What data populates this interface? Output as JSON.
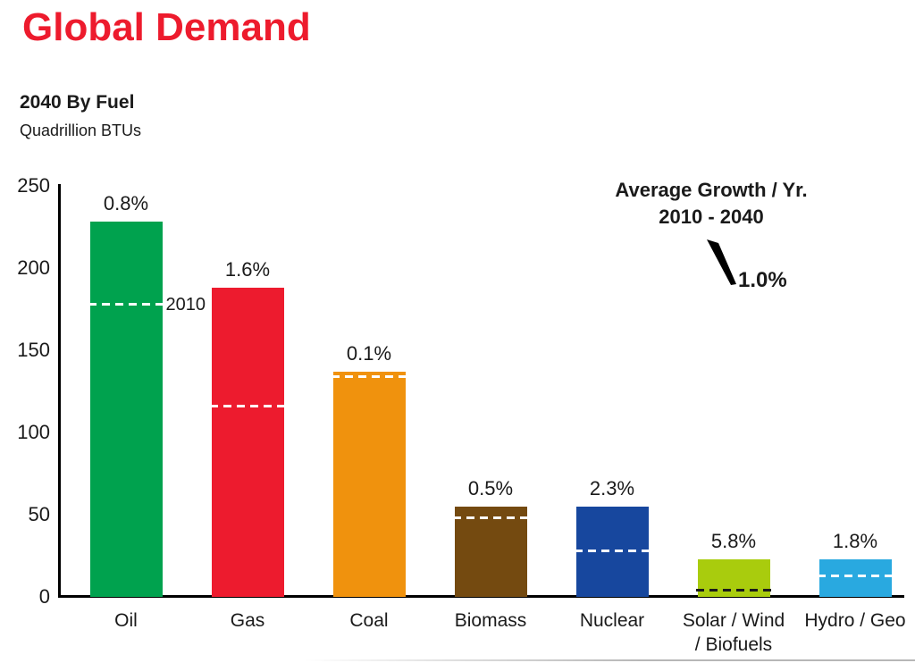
{
  "header": {
    "title": "Global Demand",
    "title_color": "#ED1B2D",
    "subtitle": "2040 By Fuel",
    "units": "Quadrillion BTUs"
  },
  "annotation": {
    "line1": "Average Growth / Yr.",
    "line2": "2010 - 2040",
    "value": "1.0%"
  },
  "chart_data": {
    "type": "bar",
    "title": "2040 By Fuel",
    "ylabel": "Quadrillion BTUs",
    "ylim": [
      0,
      250
    ],
    "yticks": [
      0,
      50,
      100,
      150,
      200,
      250
    ],
    "grid": false,
    "legend_position": "none",
    "categories": [
      "Oil",
      "Gas",
      "Coal",
      "Biomass",
      "Nuclear",
      "Solar / Wind / Biofuels",
      "Hydro / Geo"
    ],
    "category_display_lines": [
      [
        "Oil"
      ],
      [
        "Gas"
      ],
      [
        "Coal"
      ],
      [
        "Biomass"
      ],
      [
        "Nuclear"
      ],
      [
        "Solar / Wind",
        "/ Biofuels"
      ],
      [
        "Hydro / Geo"
      ]
    ],
    "series": [
      {
        "name": "2040 demand",
        "values": [
          228,
          188,
          137,
          55,
          55,
          23,
          23
        ]
      },
      {
        "name": "2010 demand (dashed reference line)",
        "values": [
          178,
          116,
          134,
          48,
          28,
          4,
          13
        ]
      }
    ],
    "growth_labels": [
      "0.8%",
      "1.6%",
      "0.1%",
      "0.5%",
      "2.3%",
      "5.8%",
      "1.8%"
    ],
    "bar_colors": [
      "#00A24E",
      "#ED1B2E",
      "#F0920D",
      "#744A10",
      "#17479E",
      "#A9CC0D",
      "#29A9E0"
    ],
    "dash_colors": [
      "#FFFFFF",
      "#FFFFFF",
      "#FFFFFF",
      "#FFFFFF",
      "#FFFFFF",
      "#1A1A1A",
      "#FFFFFF"
    ],
    "reference_line_label": "2010",
    "reference_label_bar_index": 0,
    "annotation": {
      "title": "Average Growth / Yr.",
      "period": "2010 - 2040",
      "value": "1.0%"
    }
  }
}
